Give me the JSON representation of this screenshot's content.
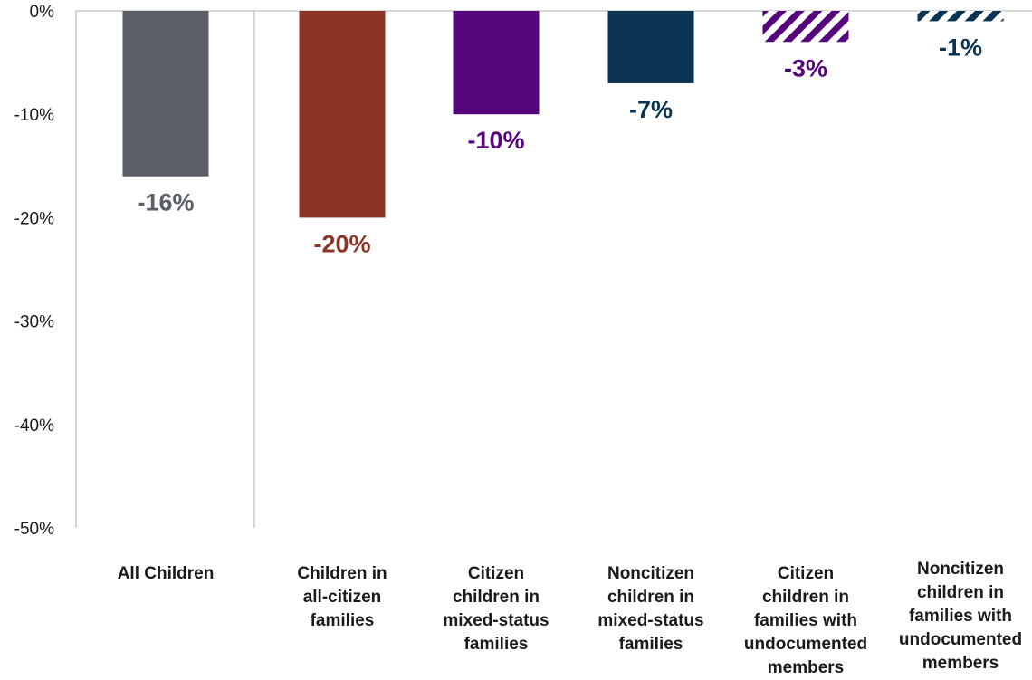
{
  "chart_data": {
    "type": "bar",
    "title": "",
    "xlabel": "",
    "ylabel": "",
    "ylim": [
      -50,
      0
    ],
    "yticks": [
      0,
      -10,
      -20,
      -30,
      -40,
      -50
    ],
    "ytick_labels": [
      "0%",
      "-10%",
      "-20%",
      "-30%",
      "-40%",
      "-50%"
    ],
    "grid": false,
    "categories": [
      [
        "All Children"
      ],
      [
        "Children in",
        "all-citizen",
        "families"
      ],
      [
        "Citizen",
        "children in",
        "mixed-status",
        "families"
      ],
      [
        "Noncitizen",
        "children in",
        "mixed-status",
        "families"
      ],
      [
        "Citizen",
        "children in",
        "families with",
        "undocumented",
        "members"
      ],
      [
        "Noncitizen",
        "children in",
        "families with",
        "undocumented",
        "members"
      ]
    ],
    "values": [
      -16,
      -20,
      -10,
      -7,
      -3,
      -1
    ],
    "value_labels": [
      "-16%",
      "-20%",
      "-10%",
      "-7%",
      "-3%",
      "-1%"
    ],
    "colors": [
      "#5a5e66",
      "#8b3324",
      "#56057c",
      "#0b3352",
      "#56057c",
      "#0b3352"
    ],
    "hatched": [
      false,
      false,
      false,
      false,
      true,
      true
    ]
  }
}
